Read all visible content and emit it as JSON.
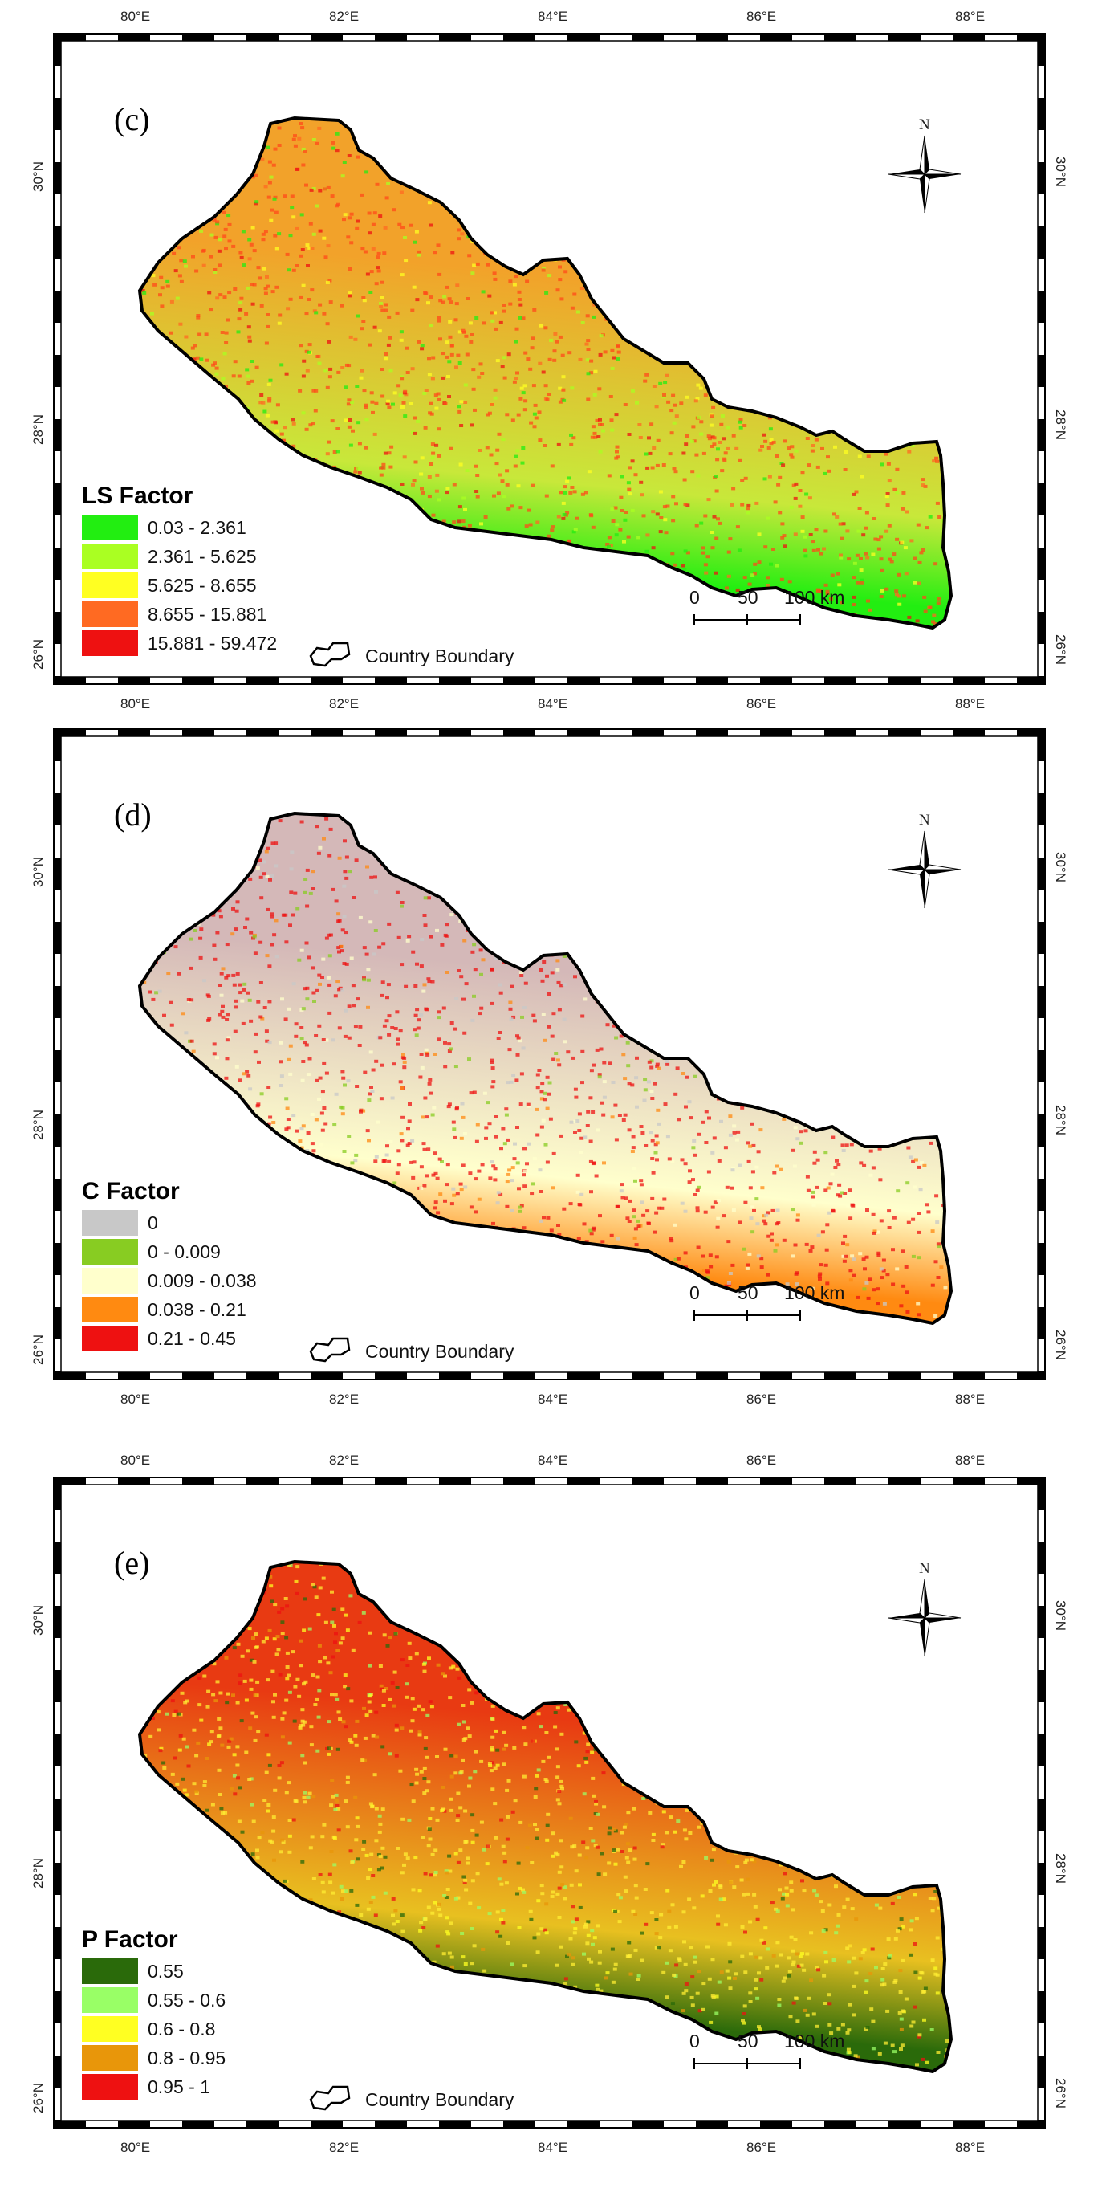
{
  "panels": [
    {
      "id": "c",
      "label": "(c)",
      "legend_title": "LS Factor",
      "legend": [
        {
          "label": "0.03 - 2.361",
          "color": "#22ee11"
        },
        {
          "label": "2.361 - 5.625",
          "color": "#aaff22"
        },
        {
          "label": "5.625 - 8.655",
          "color": "#ffff22"
        },
        {
          "label": "8.655 - 15.881",
          "color": "#ff6a22"
        },
        {
          "label": "15.881 - 59.472",
          "color": "#ee1111"
        }
      ],
      "map_colors": {
        "south": "#22ee11",
        "mid": "#c8e83a",
        "north": "#f2a22a",
        "speckle": "#ff4a1a"
      }
    },
    {
      "id": "d",
      "label": "(d)",
      "legend_title": "C Factor",
      "legend": [
        {
          "label": "0",
          "color": "#c8c8c8"
        },
        {
          "label": "0 - 0.009",
          "color": "#88cc22"
        },
        {
          "label": "0.009 - 0.038",
          "color": "#ffffcc"
        },
        {
          "label": "0.038 - 0.21",
          "color": "#ff8a11"
        },
        {
          "label": "0.21 - 0.45",
          "color": "#ee1111"
        }
      ],
      "map_colors": {
        "south": "#ff8a11",
        "mid": "#ffffcc",
        "north": "#d4b8b8",
        "speckle": "#ee1111"
      }
    },
    {
      "id": "e",
      "label": "(e)",
      "legend_title": "P Factor",
      "legend": [
        {
          "label": "0.55",
          "color": "#2a6a0a"
        },
        {
          "label": "0.55 - 0.6",
          "color": "#99ff66"
        },
        {
          "label": "0.6 - 0.8",
          "color": "#ffff22"
        },
        {
          "label": "0.8 - 0.95",
          "color": "#e8960a"
        },
        {
          "label": "0.95 - 1",
          "color": "#ee1111"
        }
      ],
      "map_colors": {
        "south": "#2a6a0a",
        "mid": "#e8c020",
        "north": "#e83a12",
        "speckle": "#ffee33"
      }
    }
  ],
  "boundary_label": "Country Boundary",
  "lon_ticks": [
    "80°E",
    "82°E",
    "84°E",
    "86°E",
    "88°E"
  ],
  "lat_ticks": [
    "30°N",
    "28°N",
    "26°N"
  ],
  "scalebar_labels": [
    "0",
    "50",
    "100 km"
  ],
  "north_letter": "N"
}
